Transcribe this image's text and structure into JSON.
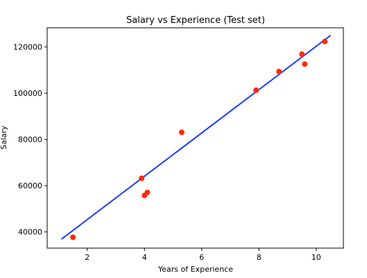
{
  "chart_data": {
    "type": "scatter",
    "title": "Salary vs Experience (Test set)",
    "xlabel": "Years of Experience",
    "ylabel": "Salary",
    "xlim": [
      0.6,
      10.95
    ],
    "ylim": [
      33000,
      128300
    ],
    "x_ticks": [
      2,
      4,
      6,
      8,
      10
    ],
    "y_ticks": [
      40000,
      60000,
      80000,
      100000,
      120000
    ],
    "grid": false,
    "series": [
      {
        "kind": "scatter",
        "color": "#ff2a0a",
        "points": [
          {
            "x": 1.5,
            "y": 37700
          },
          {
            "x": 3.9,
            "y": 63200
          },
          {
            "x": 4.0,
            "y": 55800
          },
          {
            "x": 4.1,
            "y": 57100
          },
          {
            "x": 5.3,
            "y": 83100
          },
          {
            "x": 7.9,
            "y": 101300
          },
          {
            "x": 8.7,
            "y": 109400
          },
          {
            "x": 9.5,
            "y": 116900
          },
          {
            "x": 9.6,
            "y": 112600
          },
          {
            "x": 10.3,
            "y": 122400
          }
        ]
      },
      {
        "kind": "line",
        "color": "#1a3cff",
        "points": [
          {
            "x": 1.1,
            "y": 36900
          },
          {
            "x": 10.5,
            "y": 125000
          }
        ]
      }
    ]
  }
}
